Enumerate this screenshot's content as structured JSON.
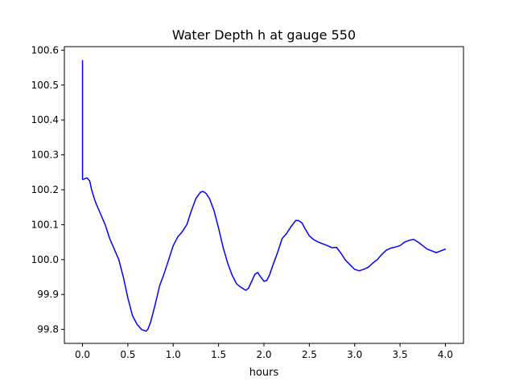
{
  "chart_data": {
    "type": "line",
    "title": "Water Depth h at gauge 550",
    "xlabel": "hours",
    "ylabel": "",
    "xlim": [
      -0.2,
      4.2
    ],
    "ylim": [
      99.76,
      100.61
    ],
    "xticks": [
      0.0,
      0.5,
      1.0,
      1.5,
      2.0,
      2.5,
      3.0,
      3.5,
      4.0
    ],
    "xtick_labels": [
      "0.0",
      "0.5",
      "1.0",
      "1.5",
      "2.0",
      "2.5",
      "3.0",
      "3.5",
      "4.0"
    ],
    "yticks": [
      99.8,
      99.9,
      100.0,
      100.1,
      100.2,
      100.3,
      100.4,
      100.5,
      100.6
    ],
    "ytick_labels": [
      "99.8",
      "99.9",
      "100.0",
      "100.1",
      "100.2",
      "100.3",
      "100.4",
      "100.5",
      "100.6"
    ],
    "grid": false,
    "series": [
      {
        "color": "#0000ff",
        "x": [
          0.0,
          0.0,
          0.01,
          0.03,
          0.05,
          0.08,
          0.1,
          0.13,
          0.15,
          0.2,
          0.25,
          0.3,
          0.35,
          0.4,
          0.45,
          0.5,
          0.55,
          0.6,
          0.65,
          0.7,
          0.72,
          0.75,
          0.8,
          0.85,
          0.9,
          0.95,
          1.0,
          1.05,
          1.1,
          1.15,
          1.2,
          1.25,
          1.3,
          1.33,
          1.36,
          1.4,
          1.45,
          1.5,
          1.55,
          1.6,
          1.65,
          1.7,
          1.75,
          1.8,
          1.83,
          1.86,
          1.9,
          1.93,
          1.96,
          2.0,
          2.03,
          2.06,
          2.1,
          2.15,
          2.2,
          2.25,
          2.3,
          2.35,
          2.38,
          2.42,
          2.45,
          2.5,
          2.55,
          2.6,
          2.65,
          2.7,
          2.75,
          2.8,
          2.85,
          2.9,
          2.95,
          3.0,
          3.05,
          3.1,
          3.15,
          3.2,
          3.25,
          3.3,
          3.35,
          3.4,
          3.45,
          3.5,
          3.55,
          3.6,
          3.65,
          3.7,
          3.75,
          3.8,
          3.85,
          3.9,
          3.95,
          4.0
        ],
        "y": [
          100.57,
          100.23,
          100.23,
          100.232,
          100.234,
          100.225,
          100.2,
          100.175,
          100.16,
          100.13,
          100.1,
          100.06,
          100.03,
          100.0,
          99.95,
          99.89,
          99.84,
          99.815,
          99.8,
          99.795,
          99.8,
          99.82,
          99.87,
          99.925,
          99.96,
          100.0,
          100.04,
          100.065,
          100.08,
          100.1,
          100.14,
          100.175,
          100.193,
          100.195,
          100.19,
          100.175,
          100.14,
          100.09,
          100.035,
          99.99,
          99.955,
          99.93,
          99.92,
          99.912,
          99.918,
          99.935,
          99.958,
          99.963,
          99.952,
          99.938,
          99.94,
          99.955,
          99.985,
          100.02,
          100.06,
          100.075,
          100.095,
          100.112,
          100.112,
          100.105,
          100.09,
          100.068,
          100.057,
          100.05,
          100.045,
          100.04,
          100.034,
          100.035,
          100.018,
          99.998,
          99.985,
          99.972,
          99.968,
          99.972,
          99.978,
          99.99,
          100.0,
          100.015,
          100.027,
          100.033,
          100.036,
          100.04,
          100.05,
          100.055,
          100.058,
          100.05,
          100.04,
          100.03,
          100.025,
          100.02,
          100.025,
          100.03
        ]
      }
    ]
  }
}
